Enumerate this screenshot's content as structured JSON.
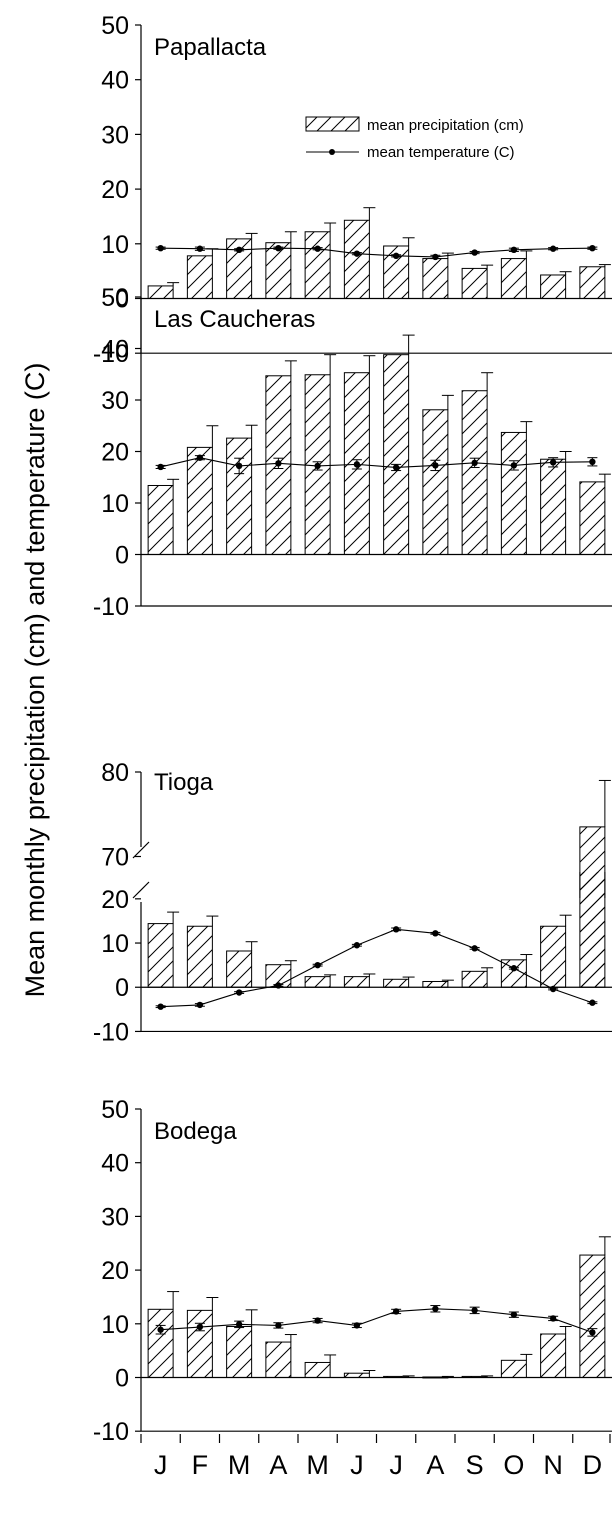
{
  "chart_data": {
    "type": "bar",
    "ylabel": "Mean monthly precipitation (cm) and temperature (C)",
    "categories": [
      "J",
      "F",
      "M",
      "A",
      "M",
      "J",
      "J",
      "A",
      "S",
      "O",
      "N",
      "D"
    ],
    "legend": {
      "placement": "top-right",
      "entries": [
        "mean precipitation (cm)",
        "mean temperature (C)"
      ]
    },
    "colors": {
      "ink": "#000000",
      "bar_fill": "#ffffff"
    },
    "panels": [
      {
        "title": "Papallacta",
        "ylim": [
          -10,
          50
        ],
        "yticks": [
          "-10",
          "0",
          "10",
          "20",
          "30",
          "40",
          "50"
        ],
        "show_legend": true,
        "series": [
          {
            "name": "mean precipitation (cm)",
            "kind": "bar",
            "values": [
              2.3,
              7.8,
              10.9,
              10.2,
              12.2,
              14.3,
              9.6,
              7.3,
              5.5,
              7.3,
              4.3,
              5.8
            ],
            "errors": [
              0.6,
              1.3,
              1.0,
              2.0,
              1.6,
              2.3,
              1.5,
              1.0,
              0.6,
              1.4,
              0.6,
              0.4
            ]
          },
          {
            "name": "mean temperature (C)",
            "kind": "line",
            "values": [
              9.2,
              9.1,
              8.9,
              9.2,
              9.1,
              8.2,
              7.8,
              7.6,
              8.4,
              8.9,
              9.1,
              9.2
            ],
            "errors": [
              0.2,
              0.3,
              0.2,
              0.2,
              0.2,
              0.2,
              0.2,
              0.3,
              0.2,
              0.3,
              0.2,
              0.2
            ]
          }
        ]
      },
      {
        "title": "Las Caucheras",
        "ylim": [
          -10,
          50
        ],
        "yticks": [
          "-10",
          "0",
          "10",
          "20",
          "30",
          "40",
          "50"
        ],
        "series": [
          {
            "name": "mean precipitation (cm)",
            "kind": "bar",
            "values": [
              13.4,
              20.8,
              22.6,
              34.7,
              34.9,
              35.3,
              38.8,
              28.1,
              31.8,
              23.7,
              18.5,
              14.1
            ],
            "errors": [
              1.2,
              4.2,
              2.5,
              2.9,
              3.9,
              3.3,
              3.8,
              2.8,
              3.5,
              2.1,
              1.5,
              1.5
            ]
          },
          {
            "name": "mean temperature (C)",
            "kind": "line",
            "values": [
              17.0,
              18.8,
              17.2,
              17.7,
              17.2,
              17.5,
              16.9,
              17.3,
              17.8,
              17.3,
              17.9,
              18.0
            ],
            "errors": [
              0.3,
              0.4,
              1.5,
              1.0,
              0.8,
              0.9,
              0.6,
              1.0,
              0.9,
              0.9,
              0.9,
              0.8
            ]
          }
        ]
      },
      {
        "title": "Tioga",
        "ylim": [
          -10,
          80
        ],
        "yticks": [
          "-10",
          "0",
          "10",
          "20",
          "70",
          "80"
        ],
        "axis_break": [
          22,
          62
        ],
        "series": [
          {
            "name": "mean precipitation (cm)",
            "kind": "bar",
            "values": [
              14.4,
              13.8,
              8.2,
              5.1,
              2.4,
              2.4,
              1.8,
              1.3,
              3.6,
              6.2,
              13.8,
              73.5
            ],
            "errors": [
              2.6,
              2.3,
              2.1,
              0.9,
              0.4,
              0.6,
              0.5,
              0.3,
              0.8,
              1.2,
              2.5,
              5.5
            ]
          },
          {
            "name": "mean temperature (C)",
            "kind": "line",
            "values": [
              -4.4,
              -4.0,
              -1.2,
              0.4,
              5.0,
              9.5,
              13.1,
              12.2,
              8.8,
              4.3,
              -0.4,
              -3.5
            ],
            "errors": [
              0.2,
              0.3,
              0.2,
              0.2,
              0.2,
              0.2,
              0.3,
              0.2,
              0.2,
              0.2,
              0.2,
              0.2
            ]
          }
        ]
      },
      {
        "title": "Bodega",
        "ylim": [
          -10,
          50
        ],
        "yticks": [
          "-10",
          "0",
          "10",
          "20",
          "30",
          "40",
          "50"
        ],
        "series": [
          {
            "name": "mean precipitation (cm)",
            "kind": "bar",
            "values": [
              12.7,
              12.5,
              9.5,
              6.6,
              2.8,
              0.8,
              0.2,
              0.1,
              0.2,
              3.2,
              8.1,
              22.8
            ],
            "errors": [
              3.3,
              2.4,
              3.1,
              1.4,
              1.4,
              0.5,
              0.1,
              0.1,
              0.1,
              1.1,
              1.4,
              3.4
            ]
          },
          {
            "name": "mean temperature (C)",
            "kind": "line",
            "values": [
              8.9,
              9.4,
              9.9,
              9.7,
              10.6,
              9.7,
              12.3,
              12.8,
              12.5,
              11.7,
              11.0,
              8.4
            ],
            "errors": [
              0.8,
              0.7,
              0.6,
              0.5,
              0.4,
              0.4,
              0.4,
              0.6,
              0.6,
              0.5,
              0.4,
              0.7
            ]
          }
        ]
      }
    ]
  }
}
